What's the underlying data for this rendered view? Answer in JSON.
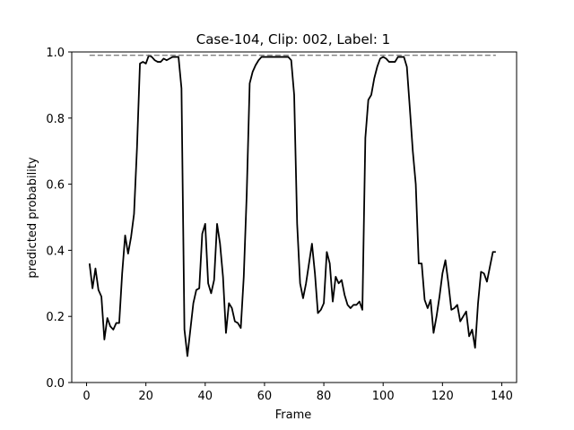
{
  "chart_data": {
    "type": "line",
    "title": "Case-104, Clip: 002, Label: 1",
    "xlabel": "Frame",
    "ylabel": "predicted probability",
    "xlim": [
      -5,
      145
    ],
    "ylim": [
      0.0,
      1.0
    ],
    "xticks": [
      0,
      20,
      40,
      60,
      80,
      100,
      120,
      140
    ],
    "yticks": [
      0.0,
      0.2,
      0.4,
      0.6,
      0.8,
      1.0
    ],
    "ytick_labels": [
      "0.0",
      "0.2",
      "0.4",
      "0.6",
      "0.8",
      "1.0"
    ],
    "grid": false,
    "legend": "none",
    "series": [
      {
        "color": "#000000",
        "style": "solid",
        "x": [
          1,
          2,
          3,
          4,
          5,
          6,
          7,
          8,
          9,
          10,
          11,
          12,
          13,
          14,
          15,
          16,
          17,
          18,
          19,
          20,
          21,
          22,
          23,
          24,
          25,
          26,
          27,
          28,
          29,
          30,
          31,
          32,
          33,
          34,
          35,
          36,
          37,
          38,
          39,
          40,
          41,
          42,
          43,
          44,
          45,
          46,
          47,
          48,
          49,
          50,
          51,
          52,
          53,
          54,
          55,
          56,
          57,
          58,
          59,
          60,
          61,
          62,
          63,
          64,
          65,
          66,
          67,
          68,
          69,
          70,
          71,
          72,
          73,
          74,
          75,
          76,
          77,
          78,
          79,
          80,
          81,
          82,
          83,
          84,
          85,
          86,
          87,
          88,
          89,
          90,
          91,
          92,
          93,
          94,
          95,
          96,
          97,
          98,
          99,
          100,
          101,
          102,
          103,
          104,
          105,
          106,
          107,
          108,
          109,
          110,
          111,
          112,
          113,
          114,
          115,
          116,
          117,
          118,
          119,
          120,
          121,
          122,
          123,
          124,
          125,
          126,
          127,
          128,
          129,
          130,
          131,
          132,
          133,
          134,
          135,
          136,
          137,
          138
        ],
        "values": [
          0.36,
          0.285,
          0.345,
          0.28,
          0.26,
          0.13,
          0.195,
          0.17,
          0.16,
          0.18,
          0.18,
          0.33,
          0.445,
          0.39,
          0.44,
          0.51,
          0.71,
          0.965,
          0.97,
          0.965,
          0.99,
          0.985,
          0.975,
          0.97,
          0.97,
          0.98,
          0.975,
          0.98,
          0.985,
          0.985,
          0.985,
          0.89,
          0.16,
          0.08,
          0.16,
          0.24,
          0.28,
          0.285,
          0.45,
          0.48,
          0.3,
          0.27,
          0.31,
          0.48,
          0.42,
          0.32,
          0.15,
          0.24,
          0.225,
          0.185,
          0.18,
          0.165,
          0.32,
          0.57,
          0.905,
          0.94,
          0.96,
          0.975,
          0.985,
          0.985,
          0.985,
          0.985,
          0.985,
          0.985,
          0.985,
          0.985,
          0.985,
          0.985,
          0.975,
          0.87,
          0.48,
          0.3,
          0.255,
          0.3,
          0.36,
          0.42,
          0.33,
          0.21,
          0.22,
          0.24,
          0.395,
          0.36,
          0.245,
          0.32,
          0.3,
          0.31,
          0.265,
          0.235,
          0.225,
          0.235,
          0.235,
          0.245,
          0.22,
          0.74,
          0.855,
          0.87,
          0.92,
          0.955,
          0.98,
          0.985,
          0.98,
          0.97,
          0.97,
          0.97,
          0.985,
          0.985,
          0.985,
          0.955,
          0.83,
          0.7,
          0.6,
          0.36,
          0.36,
          0.25,
          0.225,
          0.25,
          0.15,
          0.2,
          0.26,
          0.33,
          0.37,
          0.3,
          0.22,
          0.225,
          0.235,
          0.185,
          0.2,
          0.215,
          0.14,
          0.16,
          0.105,
          0.24,
          0.335,
          0.33,
          0.305,
          0.35,
          0.395,
          0.395
        ]
      },
      {
        "color": "#808080",
        "style": "dashed",
        "x": [
          1,
          138
        ],
        "values": [
          0.99,
          0.99
        ]
      }
    ]
  }
}
